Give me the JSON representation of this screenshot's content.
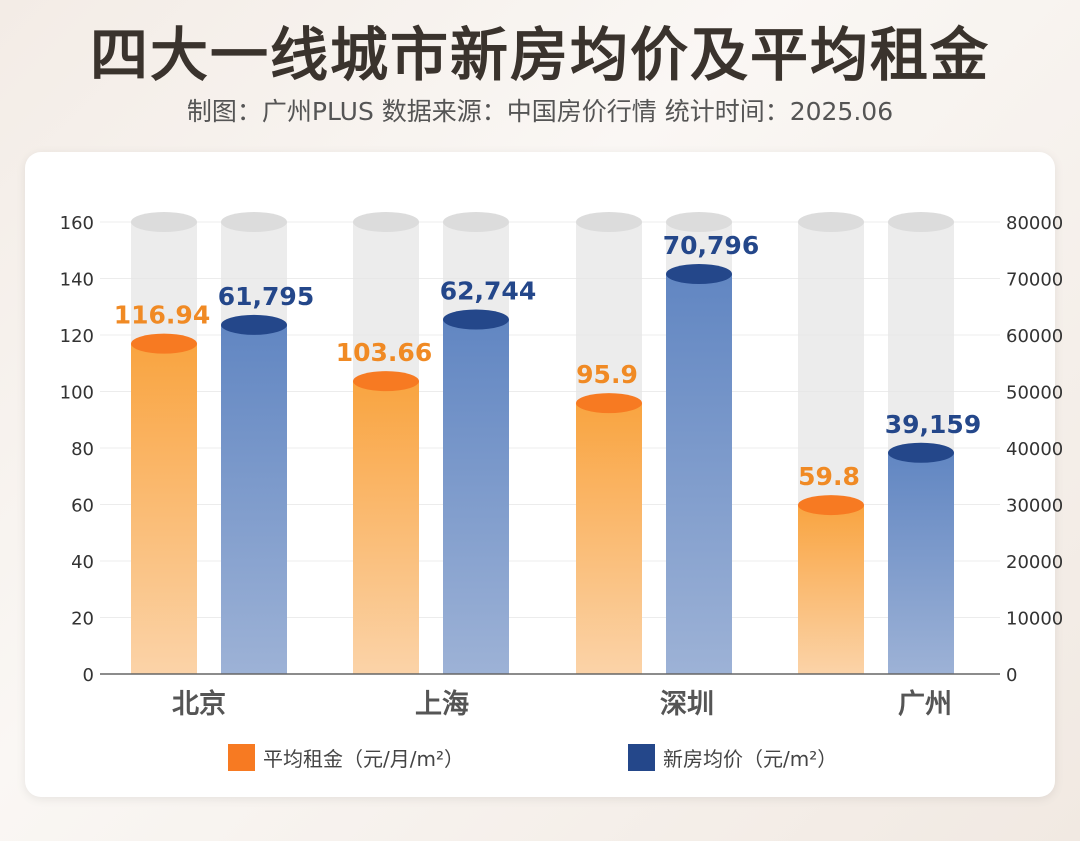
{
  "header": {
    "title": "四大一线城市新房均价及平均租金",
    "subtitle": "制图：广州PLUS   数据来源：中国房价行情 统计时间：2025.06"
  },
  "colors": {
    "rent": "#f9a94a",
    "rent_top": "#f77a22",
    "price": "#6b8fc6",
    "price_top": "#24478a",
    "rent_label": "#f08a24",
    "price_label": "#24478a",
    "track": "#e6e6e6"
  },
  "chart_data": {
    "type": "bar",
    "title": "四大一线城市新房均价及平均租金",
    "categories": [
      "北京",
      "上海",
      "深圳",
      "广州"
    ],
    "series": [
      {
        "name": "平均租金（元/月/m²）",
        "axis": "left",
        "values": [
          116.94,
          103.66,
          95.9,
          59.8
        ],
        "labels": [
          "116.94",
          "103.66",
          "95.9",
          "59.8"
        ]
      },
      {
        "name": "新房均价（元/m²）",
        "axis": "right",
        "values": [
          61795,
          62744,
          70796,
          39159
        ],
        "labels": [
          "61,795",
          "62,744",
          "70,796",
          "39,159"
        ]
      }
    ],
    "left_axis": {
      "ylim": [
        0,
        160
      ],
      "ticks": [
        "0",
        "20",
        "40",
        "60",
        "80",
        "100",
        "120",
        "140",
        "160"
      ]
    },
    "right_axis": {
      "ylim": [
        0,
        80000
      ],
      "ticks": [
        "0",
        "10000",
        "20000",
        "30000",
        "40000",
        "50000",
        "60000",
        "70000",
        "80000"
      ]
    },
    "grid": true,
    "legend": "bottom"
  }
}
